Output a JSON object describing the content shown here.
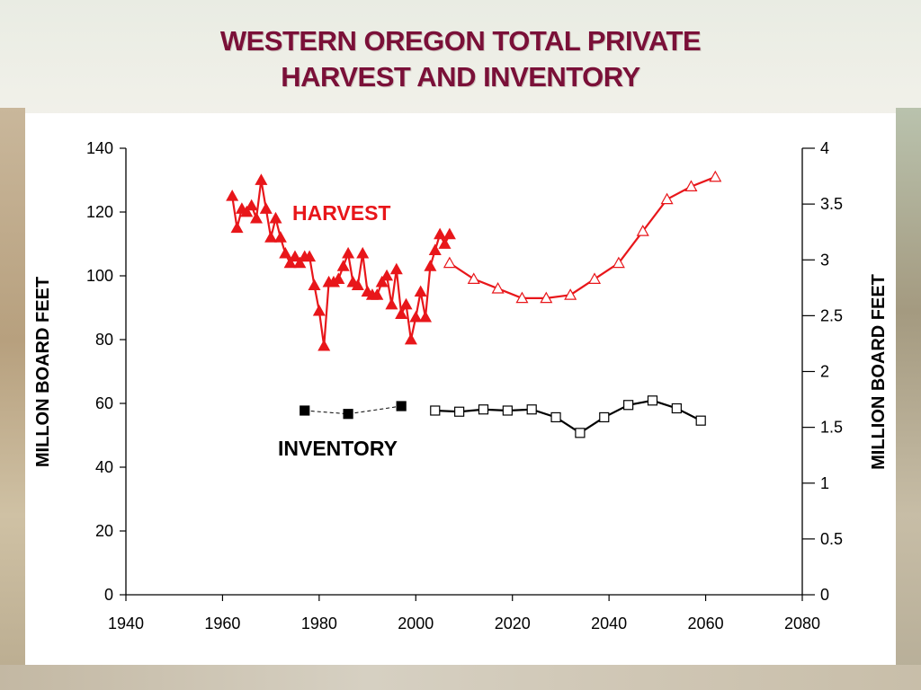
{
  "slide": {
    "title_line1": "WESTERN OREGON TOTAL PRIVATE",
    "title_line2": "HARVEST AND INVENTORY"
  },
  "colors": {
    "title": "#7a1038",
    "harvest": "#e8161a",
    "inventory": "#000000"
  },
  "chart_data": {
    "type": "line",
    "title": "WESTERN OREGON TOTAL PRIVATE HARVEST AND INVENTORY",
    "xlabel": "",
    "ylabel_left": "MILLON BOARD FEET",
    "ylabel_right": "MILLION BOARD FEET",
    "xlim": [
      1940,
      2080
    ],
    "ylim_left": [
      0,
      140
    ],
    "ylim_right": [
      0,
      4
    ],
    "x_ticks": [
      "1940",
      "1960",
      "1980",
      "2000",
      "2020",
      "2040",
      "2060",
      "2080"
    ],
    "y_left_ticks": [
      "0",
      "20",
      "40",
      "60",
      "80",
      "100",
      "120",
      "140"
    ],
    "y_right_ticks": [
      "0",
      "0.5",
      "1",
      "1.5",
      "2",
      "2.5",
      "3",
      "3.5",
      "4"
    ],
    "grid": false,
    "annotations": [
      {
        "text": "HARVEST",
        "series": "harvest"
      },
      {
        "text": "INVENTORY",
        "series": "inventory"
      }
    ],
    "series": [
      {
        "key": "harvest_hist",
        "group": "harvest",
        "axis": "left",
        "marker": "triangle-filled",
        "line": "solid",
        "points": [
          [
            1962,
            125
          ],
          [
            1963,
            115
          ],
          [
            1964,
            121
          ],
          [
            1965,
            120
          ],
          [
            1966,
            122
          ],
          [
            1967,
            118
          ],
          [
            1968,
            130
          ],
          [
            1969,
            121
          ],
          [
            1970,
            112
          ],
          [
            1971,
            118
          ],
          [
            1972,
            112
          ],
          [
            1973,
            107
          ],
          [
            1974,
            104
          ],
          [
            1975,
            106
          ],
          [
            1976,
            104
          ],
          [
            1977,
            106
          ],
          [
            1978,
            106
          ],
          [
            1979,
            97
          ],
          [
            1980,
            89
          ],
          [
            1981,
            78
          ],
          [
            1982,
            98
          ],
          [
            1983,
            98
          ],
          [
            1984,
            99
          ],
          [
            1985,
            103
          ],
          [
            1986,
            107
          ],
          [
            1987,
            98
          ],
          [
            1988,
            97
          ],
          [
            1989,
            107
          ],
          [
            1990,
            95
          ],
          [
            1991,
            94
          ],
          [
            1992,
            94
          ],
          [
            1993,
            98
          ],
          [
            1994,
            100
          ],
          [
            1995,
            91
          ],
          [
            1996,
            102
          ],
          [
            1997,
            88
          ],
          [
            1998,
            91
          ],
          [
            1999,
            80
          ],
          [
            2000,
            87
          ],
          [
            2001,
            95
          ],
          [
            2002,
            87
          ],
          [
            2003,
            103
          ],
          [
            2004,
            108
          ],
          [
            2005,
            113
          ],
          [
            2006,
            110
          ],
          [
            2007,
            113
          ]
        ]
      },
      {
        "key": "harvest_proj",
        "group": "harvest",
        "axis": "left",
        "marker": "triangle-open",
        "line": "solid",
        "points": [
          [
            2007,
            104
          ],
          [
            2012,
            99
          ],
          [
            2017,
            96
          ],
          [
            2022,
            93
          ],
          [
            2027,
            93
          ],
          [
            2032,
            94
          ],
          [
            2037,
            99
          ],
          [
            2042,
            104
          ],
          [
            2047,
            114
          ],
          [
            2052,
            124
          ],
          [
            2057,
            128
          ],
          [
            2062,
            131
          ]
        ]
      },
      {
        "key": "inventory_hist",
        "group": "inventory",
        "axis": "right",
        "marker": "square-filled",
        "line": "dashed",
        "points": [
          [
            1977,
            1.65
          ],
          [
            1986,
            1.62
          ],
          [
            1997,
            1.69
          ]
        ]
      },
      {
        "key": "inventory_proj",
        "group": "inventory",
        "axis": "right",
        "marker": "square-open",
        "line": "solid",
        "points": [
          [
            2004,
            1.65
          ],
          [
            2009,
            1.64
          ],
          [
            2014,
            1.66
          ],
          [
            2019,
            1.65
          ],
          [
            2024,
            1.66
          ],
          [
            2029,
            1.59
          ],
          [
            2034,
            1.45
          ],
          [
            2039,
            1.59
          ],
          [
            2044,
            1.7
          ],
          [
            2049,
            1.74
          ],
          [
            2054,
            1.67
          ],
          [
            2059,
            1.56
          ]
        ]
      }
    ]
  }
}
